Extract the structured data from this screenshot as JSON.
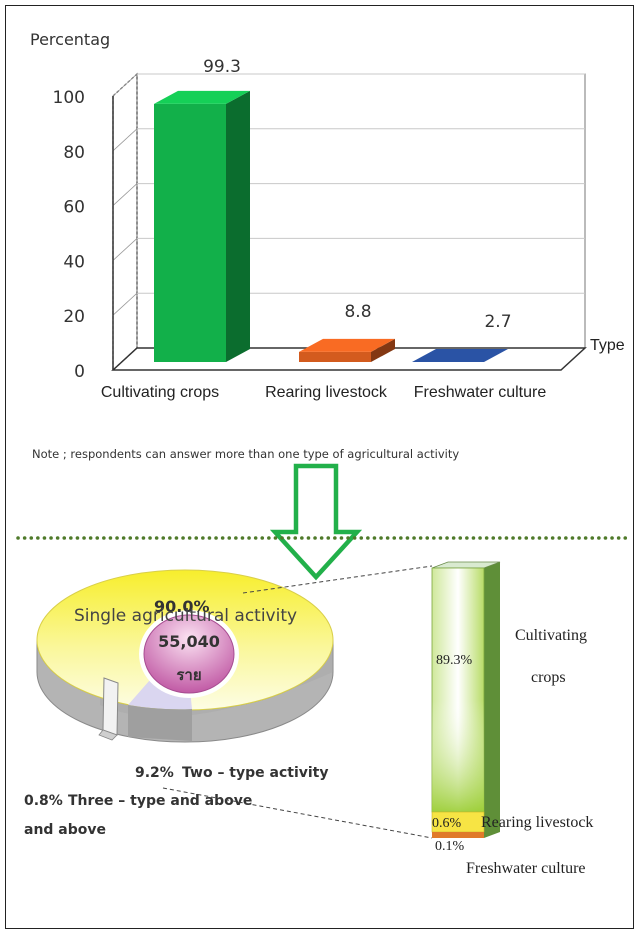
{
  "chart_data": [
    {
      "type": "bar",
      "ylabel": "Percentag",
      "xlabel": "Type",
      "ylim": [
        0,
        100
      ],
      "yticks": [
        0,
        20,
        40,
        60,
        80,
        100
      ],
      "categories": [
        "Cultivating crops",
        "Rearing livestock",
        "Freshwater culture"
      ],
      "values": [
        99.3,
        8.8,
        2.7
      ],
      "value_labels": [
        "99.3",
        "8.8",
        "2.7"
      ],
      "colors": [
        "#12b04a",
        "#d35b1e",
        "#24468c"
      ],
      "three_d": true,
      "grid": true
    },
    {
      "type": "pie",
      "three_d": true,
      "center_value": "55,040",
      "center_unit": "ราย",
      "slices": [
        {
          "label": "Single agricultural activity",
          "percent_label": "90.0%",
          "value": 90.0,
          "color": "#f7ee3a"
        },
        {
          "label": "Two – type activity",
          "percent_label": "9.2%",
          "value": 9.2,
          "color": "#d6d2ef"
        },
        {
          "label": "Three – type and above",
          "line2": "and above",
          "percent_label": "0.8%",
          "value": 0.8,
          "color": "#e8e8e8"
        }
      ]
    },
    {
      "type": "bar",
      "stacked": true,
      "three_d": true,
      "breakdown_of": "Single agricultural activity",
      "series": [
        {
          "name": "Cultivating crops",
          "label_line1": "Cultivating",
          "label_line2": "crops",
          "percent_label": "89.3%",
          "value": 89.3,
          "color": "#9acd32"
        },
        {
          "name": "Rearing livestock",
          "percent_label": "0.6%",
          "value": 0.6,
          "color": "#f5e23c"
        },
        {
          "name": "Freshwater culture",
          "percent_label": "0.1%",
          "value": 0.1,
          "color": "#e07a2a"
        }
      ]
    }
  ],
  "note": "Note ; respondents can answer more than one type of agricultural activity",
  "colors": {
    "arrow": "#22b04a",
    "divider": "#4f7a2a",
    "frame": "#222222"
  }
}
